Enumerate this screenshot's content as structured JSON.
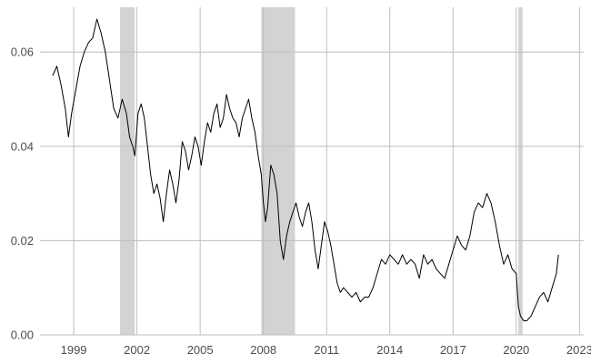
{
  "chart_data": {
    "type": "line",
    "title": "",
    "xlabel": "",
    "ylabel": "",
    "xlim": [
      1997.4,
      2023.2
    ],
    "ylim": [
      0.0,
      0.0695
    ],
    "grid": true,
    "x_ticks": [
      {
        "value": 1999,
        "label": "1999"
      },
      {
        "value": 2002,
        "label": "2002"
      },
      {
        "value": 2005,
        "label": "2005"
      },
      {
        "value": 2008,
        "label": "2008"
      },
      {
        "value": 2011,
        "label": "2011"
      },
      {
        "value": 2014,
        "label": "2014"
      },
      {
        "value": 2017,
        "label": "2017"
      },
      {
        "value": 2020,
        "label": "2020"
      },
      {
        "value": 2023,
        "label": "2023"
      }
    ],
    "y_ticks": [
      {
        "value": 0.0,
        "label": "0.00"
      },
      {
        "value": 0.02,
        "label": "0.02"
      },
      {
        "value": 0.04,
        "label": "0.04"
      },
      {
        "value": 0.06,
        "label": "0.06"
      }
    ],
    "shaded_periods": [
      {
        "start": 2001.2,
        "end": 2001.9
      },
      {
        "start": 2007.9,
        "end": 2009.5
      },
      {
        "start": 2020.1,
        "end": 2020.3
      }
    ],
    "shade_color": "#d3d3d3",
    "line_color": "#000000",
    "series": [
      {
        "x": [
          1998.0,
          1998.2,
          1998.4,
          1998.6,
          1998.75,
          1998.9,
          1999.1,
          1999.3,
          1999.5,
          1999.7,
          1999.9,
          2000.1,
          2000.3,
          2000.5,
          2000.7,
          2000.9,
          2001.1,
          2001.3,
          2001.5,
          2001.65,
          2001.8,
          2001.9,
          2002.05,
          2002.2,
          2002.35,
          2002.5,
          2002.65,
          2002.8,
          2002.95,
          2003.1,
          2003.25,
          2003.4,
          2003.55,
          2003.7,
          2003.85,
          2004.0,
          2004.15,
          2004.3,
          2004.45,
          2004.6,
          2004.75,
          2004.9,
          2005.05,
          2005.2,
          2005.35,
          2005.5,
          2005.65,
          2005.8,
          2005.95,
          2006.1,
          2006.25,
          2006.4,
          2006.55,
          2006.7,
          2006.85,
          2007.0,
          2007.15,
          2007.3,
          2007.45,
          2007.6,
          2007.75,
          2007.9,
          2008.0,
          2008.1,
          2008.2,
          2008.35,
          2008.5,
          2008.65,
          2008.8,
          2008.95,
          2009.1,
          2009.25,
          2009.4,
          2009.55,
          2009.7,
          2009.85,
          2010.0,
          2010.15,
          2010.3,
          2010.45,
          2010.6,
          2010.75,
          2010.9,
          2011.05,
          2011.2,
          2011.35,
          2011.5,
          2011.65,
          2011.8,
          2012.0,
          2012.2,
          2012.4,
          2012.6,
          2012.8,
          2013.0,
          2013.2,
          2013.4,
          2013.6,
          2013.8,
          2014.0,
          2014.2,
          2014.4,
          2014.6,
          2014.8,
          2015.0,
          2015.2,
          2015.4,
          2015.6,
          2015.8,
          2016.0,
          2016.2,
          2016.4,
          2016.6,
          2016.8,
          2017.0,
          2017.2,
          2017.4,
          2017.6,
          2017.8,
          2018.0,
          2018.2,
          2018.4,
          2018.6,
          2018.8,
          2019.0,
          2019.2,
          2019.4,
          2019.6,
          2019.8,
          2020.0,
          2020.1,
          2020.2,
          2020.35,
          2020.5,
          2020.7,
          2020.9,
          2021.1,
          2021.3,
          2021.5,
          2021.7,
          2021.9,
          2022.0
        ],
        "y": [
          0.055,
          0.057,
          0.053,
          0.048,
          0.042,
          0.047,
          0.052,
          0.057,
          0.06,
          0.062,
          0.063,
          0.067,
          0.064,
          0.06,
          0.054,
          0.048,
          0.046,
          0.05,
          0.047,
          0.042,
          0.04,
          0.038,
          0.047,
          0.049,
          0.046,
          0.04,
          0.034,
          0.03,
          0.032,
          0.029,
          0.024,
          0.03,
          0.035,
          0.032,
          0.028,
          0.033,
          0.041,
          0.039,
          0.035,
          0.038,
          0.042,
          0.04,
          0.036,
          0.041,
          0.045,
          0.043,
          0.047,
          0.049,
          0.044,
          0.046,
          0.051,
          0.048,
          0.046,
          0.045,
          0.042,
          0.046,
          0.048,
          0.05,
          0.046,
          0.043,
          0.038,
          0.034,
          0.028,
          0.024,
          0.027,
          0.036,
          0.034,
          0.03,
          0.02,
          0.016,
          0.021,
          0.024,
          0.026,
          0.028,
          0.025,
          0.023,
          0.026,
          0.028,
          0.024,
          0.018,
          0.014,
          0.019,
          0.024,
          0.022,
          0.019,
          0.015,
          0.011,
          0.009,
          0.01,
          0.009,
          0.008,
          0.009,
          0.007,
          0.008,
          0.008,
          0.01,
          0.013,
          0.016,
          0.015,
          0.017,
          0.016,
          0.015,
          0.017,
          0.015,
          0.016,
          0.015,
          0.012,
          0.017,
          0.015,
          0.016,
          0.014,
          0.013,
          0.012,
          0.015,
          0.018,
          0.021,
          0.019,
          0.018,
          0.021,
          0.026,
          0.028,
          0.027,
          0.03,
          0.028,
          0.024,
          0.019,
          0.015,
          0.017,
          0.014,
          0.013,
          0.006,
          0.004,
          0.003,
          0.003,
          0.004,
          0.006,
          0.008,
          0.009,
          0.007,
          0.01,
          0.013,
          0.017
        ]
      }
    ]
  }
}
